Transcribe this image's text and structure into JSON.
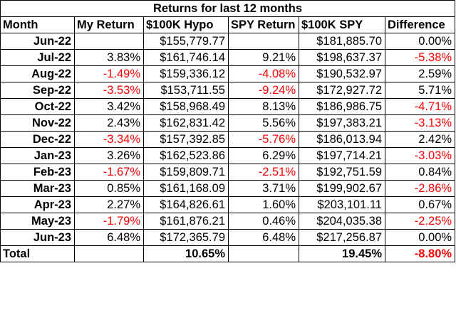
{
  "title": "Returns for last 12 months",
  "colors": {
    "negative": "#ff0000",
    "text": "#000000",
    "border": "#000000"
  },
  "headers": {
    "month": "Month",
    "my_return": "My Return",
    "hypo": "$100K Hypo",
    "spy_return": "SPY Return",
    "spy_value": "$100K SPY",
    "difference": "Difference"
  },
  "rows": [
    {
      "month": "Jun-22",
      "my_return": "",
      "hypo": "$155,779.77",
      "spy_return": "",
      "spy_value": "$181,885.70",
      "difference": "0.00%"
    },
    {
      "month": "Jul-22",
      "my_return": "3.83%",
      "hypo": "$161,746.14",
      "spy_return": "9.21%",
      "spy_value": "$198,637.37",
      "difference": "-5.38%"
    },
    {
      "month": "Aug-22",
      "my_return": "-1.49%",
      "hypo": "$159,336.12",
      "spy_return": "-4.08%",
      "spy_value": "$190,532.97",
      "difference": "2.59%"
    },
    {
      "month": "Sep-22",
      "my_return": "-3.53%",
      "hypo": "$153,711.55",
      "spy_return": "-9.24%",
      "spy_value": "$172,927.72",
      "difference": "5.71%"
    },
    {
      "month": "Oct-22",
      "my_return": "3.42%",
      "hypo": "$158,968.49",
      "spy_return": "8.13%",
      "spy_value": "$186,986.75",
      "difference": "-4.71%"
    },
    {
      "month": "Nov-22",
      "my_return": "2.43%",
      "hypo": "$162,831.42",
      "spy_return": "5.56%",
      "spy_value": "$197,383.21",
      "difference": "-3.13%"
    },
    {
      "month": "Dec-22",
      "my_return": "-3.34%",
      "hypo": "$157,392.85",
      "spy_return": "-5.76%",
      "spy_value": "$186,013.94",
      "difference": "2.42%"
    },
    {
      "month": "Jan-23",
      "my_return": "3.26%",
      "hypo": "$162,523.86",
      "spy_return": "6.29%",
      "spy_value": "$197,714.21",
      "difference": "-3.03%"
    },
    {
      "month": "Feb-23",
      "my_return": "-1.67%",
      "hypo": "$159,809.71",
      "spy_return": "-2.51%",
      "spy_value": "$192,751.59",
      "difference": "0.84%"
    },
    {
      "month": "Mar-23",
      "my_return": "0.85%",
      "hypo": "$161,168.09",
      "spy_return": "3.71%",
      "spy_value": "$199,902.67",
      "difference": "-2.86%"
    },
    {
      "month": "Apr-23",
      "my_return": "2.27%",
      "hypo": "$164,826.61",
      "spy_return": "1.60%",
      "spy_value": "$203,101.11",
      "difference": "0.67%"
    },
    {
      "month": "May-23",
      "my_return": "-1.79%",
      "hypo": "$161,876.21",
      "spy_return": "0.46%",
      "spy_value": "$204,035.38",
      "difference": "-2.25%"
    },
    {
      "month": "Jun-23",
      "my_return": "6.48%",
      "hypo": "$172,365.79",
      "spy_return": "6.48%",
      "spy_value": "$217,256.87",
      "difference": "0.00%"
    }
  ],
  "total": {
    "label": "Total",
    "my_total": "10.65%",
    "spy_total": "19.45%",
    "difference": "-8.80%"
  }
}
